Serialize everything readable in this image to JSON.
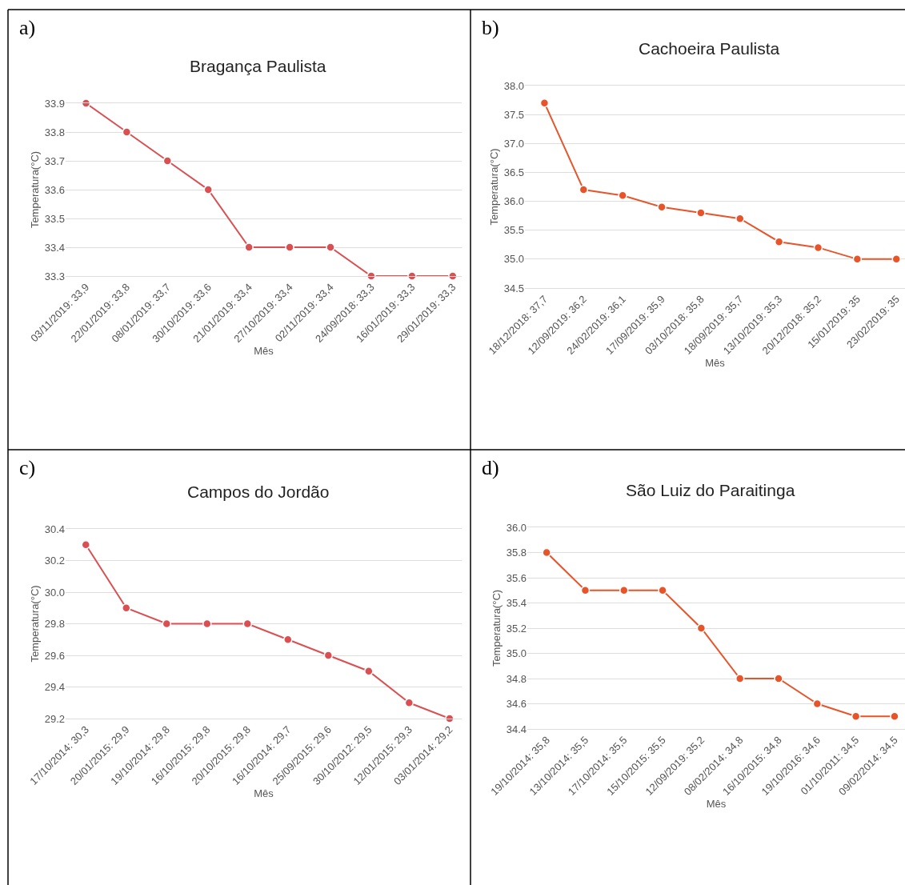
{
  "chart_data": [
    {
      "type": "line",
      "title": "Bragança Paulista",
      "xlabel": "Mês",
      "ylabel": "Temperatura(°C)",
      "annotations": [
        "a)"
      ],
      "categories": [
        "03/11/2019: 33,9",
        "22/01/2019: 33,8",
        "08/01/2019: 33,7",
        "30/10/2019: 33,6",
        "21/01/2019: 33,4",
        "27/10/2019: 33,4",
        "02/11/2019: 33,4",
        "24/09/2018: 33,3",
        "16/01/2019: 33,3",
        "29/01/2019: 33,3"
      ],
      "series": [
        {
          "color": "#db4f52",
          "values": [
            33.9,
            33.8,
            33.7,
            33.6,
            33.4,
            33.4,
            33.4,
            33.3,
            33.3,
            33.3
          ]
        }
      ],
      "ylim": [
        33.3,
        33.9
      ],
      "yticks": [
        33.3,
        33.4,
        33.5,
        33.6,
        33.7,
        33.8,
        33.9
      ],
      "grid": "y",
      "marker": "circle",
      "line_style": "solid"
    },
    {
      "type": "line",
      "title": "Cachoeira Paulista",
      "xlabel": "Mês",
      "ylabel": "Temperatura(°C)",
      "annotations": [
        "b)"
      ],
      "categories": [
        "18/12/2018: 37,7",
        "12/09/2019: 36,2",
        "24/02/2019: 36,1",
        "17/09/2019: 35,9",
        "03/10/2018: 35,8",
        "18/09/2019: 35,7",
        "13/10/2019: 35,3",
        "20/12/2018: 35,2",
        "15/01/2019: 35",
        "23/02/2019: 35"
      ],
      "series": [
        {
          "color": "#e8542a",
          "values": [
            37.7,
            36.2,
            36.1,
            35.9,
            35.8,
            35.7,
            35.3,
            35.2,
            35,
            35
          ]
        }
      ],
      "ylim": [
        34.5,
        38
      ],
      "yticks": [
        34.5,
        {
          "value": 35,
          "label": "35.0"
        },
        35.5,
        {
          "value": 36,
          "label": "36.0"
        },
        36.5,
        {
          "value": 37,
          "label": "37.0"
        },
        37.5,
        {
          "value": 38,
          "label": "38.0"
        }
      ],
      "grid": "y",
      "marker": "circle",
      "line_style": "solid"
    },
    {
      "type": "line",
      "title": "Campos do Jordão",
      "xlabel": "Mês",
      "ylabel": "Temperatura(°C)",
      "annotations": [
        "c)"
      ],
      "categories": [
        "17/10/2014: 30,3",
        "20/01/2015: 29,9",
        "19/10/2014: 29,8",
        "16/10/2015: 29,8",
        "20/10/2015: 29,8",
        "16/10/2014: 29,7",
        "25/09/2015: 29,6",
        "30/10/2012: 29,5",
        "12/01/2015: 29,3",
        "03/01/2014: 29,2"
      ],
      "series": [
        {
          "color": "#db4f52",
          "values": [
            30.3,
            29.9,
            29.8,
            29.8,
            29.8,
            29.7,
            29.6,
            29.5,
            29.3,
            29.2
          ]
        }
      ],
      "ylim": [
        29.2,
        30.4
      ],
      "yticks": [
        29.2,
        29.4,
        29.6,
        29.8,
        {
          "value": 30,
          "label": "30.0"
        },
        30.2,
        30.4
      ],
      "grid": "y",
      "marker": "circle",
      "line_style": "solid"
    },
    {
      "type": "line",
      "title": "São Luiz do Paraitinga",
      "xlabel": "Mês",
      "ylabel": "Temperatura(°C)",
      "annotations": [
        "d)"
      ],
      "categories": [
        "19/10/2014: 35,8",
        "13/10/2014: 35,5",
        "17/10/2014: 35,5",
        "15/10/2015: 35,5",
        "12/09/2019: 35,2",
        "08/02/2014: 34,8",
        "16/10/2015: 34,8",
        "19/10/2016: 34,6",
        "01/10/2011: 34,5",
        "09/02/2014: 34,5"
      ],
      "series": [
        {
          "color": "#e8542a",
          "values": [
            35.8,
            35.5,
            35.5,
            35.5,
            35.2,
            34.8,
            34.8,
            34.6,
            34.5,
            34.5
          ]
        }
      ],
      "ylim": [
        34.4,
        36
      ],
      "yticks": [
        34.4,
        34.6,
        34.8,
        {
          "value": 35,
          "label": "35.0"
        },
        35.2,
        35.4,
        35.6,
        35.8,
        {
          "value": 36,
          "label": "36.0"
        }
      ],
      "grid": "y",
      "marker": "circle",
      "line_style": "solid"
    }
  ]
}
